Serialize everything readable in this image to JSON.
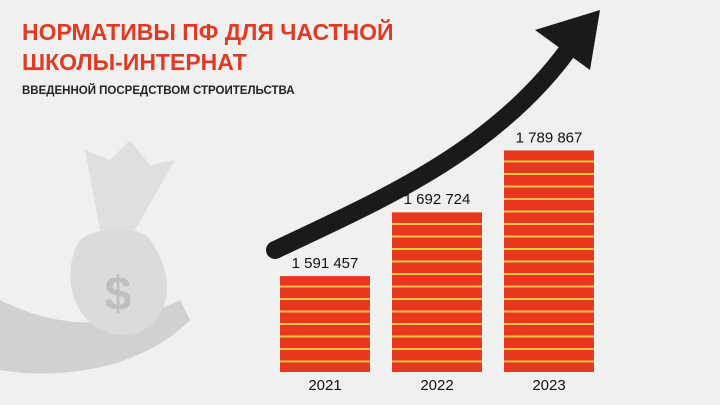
{
  "chart_data": {
    "type": "bar",
    "title": [
      "НОРМАТИВЫ ПФ ДЛЯ ЧАСТНОЙ",
      "ШКОЛЫ-ИНТЕРНАТ"
    ],
    "subtitle": "ВВЕДЕННОЙ ПОСРЕДСТВОМ СТРОИТЕЛЬСТВА",
    "categories": [
      "2021",
      "2022",
      "2023"
    ],
    "values": [
      1591457,
      1692724,
      1789867
    ],
    "value_labels": [
      "1 591 457",
      "1 692 724",
      "1 789 867"
    ],
    "color": "#e8361f",
    "ylim": [
      1440000,
      1800000
    ]
  }
}
